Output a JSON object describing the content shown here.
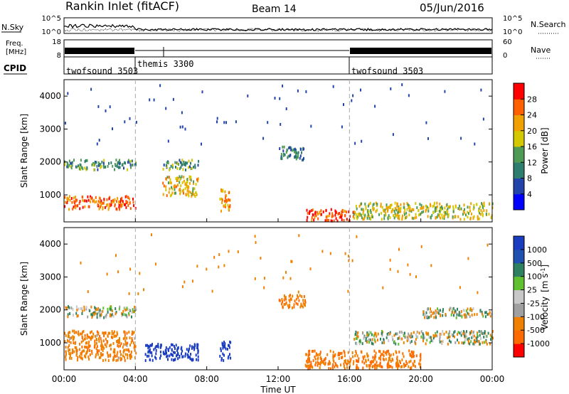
{
  "header": {
    "station": "Rankin Inlet (fitACF)",
    "beam": "Beam 14",
    "date": "05/Jun/2016"
  },
  "noise_panel": {
    "left_label": "N.Sky",
    "right_label": "N.Search",
    "left_ticks": [
      "10^5",
      "10^0"
    ],
    "right_ticks": [
      "10^5",
      "10^0"
    ]
  },
  "freq_panel": {
    "left_label_1": "Freq.",
    "left_label_2": "[MHz]",
    "left_ticks": [
      "18",
      "8"
    ],
    "right_label": "Nave",
    "right_ticks": [
      "60",
      "0"
    ]
  },
  "cpid_panel": {
    "label": "CPID",
    "modes": [
      {
        "name": "twofsound 3503",
        "start": 0.0
      },
      {
        "name": "themis 3300",
        "start": 4.0
      },
      {
        "name": "twofsound 3503",
        "start": 16.0
      }
    ]
  },
  "colors": {
    "power_scale": [
      "#0000ff",
      "#2244aa",
      "#2e7d6e",
      "#4f9a55",
      "#d4c800",
      "#f0a000",
      "#ff6000",
      "#ff0000"
    ],
    "velocity_scale": [
      "#ff0000",
      "#ff6a00",
      "#f08000",
      "#a0a0a0",
      "#c8c8c8",
      "#60c030",
      "#2e8060",
      "#2050b0",
      "#1a3cc0"
    ],
    "ground_scatter": "#b4b4b4"
  },
  "chart_data": [
    {
      "type": "heatmap",
      "panel": "power",
      "ylabel": "Slant Range [km]",
      "xlabel": "",
      "yticks": [
        "1000",
        "2000",
        "3000",
        "4000"
      ],
      "ylim": [
        180,
        4500
      ],
      "xlim": [
        0,
        24
      ],
      "colorbar": {
        "label": "Power [dB]",
        "ticks": [
          "4",
          "8",
          "12",
          "16",
          "20",
          "24",
          "28"
        ],
        "range": [
          0,
          32
        ]
      },
      "features": [
        {
          "t": [
            0.0,
            4.0
          ],
          "range": [
            600,
            1000
          ],
          "value": 26
        },
        {
          "t": [
            0.0,
            4.0
          ],
          "range": [
            1800,
            2100
          ],
          "value": 12
        },
        {
          "t": [
            5.5,
            7.5
          ],
          "range": [
            1000,
            1600
          ],
          "value": 20
        },
        {
          "t": [
            5.5,
            7.5
          ],
          "range": [
            1800,
            2100
          ],
          "value": 12
        },
        {
          "t": [
            8.7,
            9.3
          ],
          "range": [
            500,
            1200
          ],
          "value": 22
        },
        {
          "t": [
            12.0,
            13.5
          ],
          "range": [
            2100,
            2500
          ],
          "value": 10
        },
        {
          "t": [
            13.5,
            16.2
          ],
          "range": [
            250,
            600
          ],
          "value": 28
        },
        {
          "t": [
            16.2,
            24.0
          ],
          "range": [
            300,
            800
          ],
          "value": 18
        }
      ]
    },
    {
      "type": "heatmap",
      "panel": "velocity",
      "ylabel": "Slant Range [km]",
      "xlabel": "Time UT",
      "xticks": [
        "00:00",
        "04:00",
        "08:00",
        "12:00",
        "16:00",
        "20:00",
        "00:00"
      ],
      "yticks": [
        "1000",
        "2000",
        "3000",
        "4000"
      ],
      "ylim": [
        180,
        4500
      ],
      "xlim": [
        0,
        24
      ],
      "colorbar": {
        "label": "Velocity",
        "unit": "[m s",
        "unit_exp": "-1",
        "unit_end": "]",
        "ticks": [
          "1000",
          "500",
          "100",
          "25",
          "-25",
          "-100",
          "-500",
          "-1000"
        ],
        "range": [
          -1000,
          1000
        ]
      },
      "features": [
        {
          "t": [
            0.0,
            4.0
          ],
          "range": [
            500,
            1400
          ],
          "value": -200
        },
        {
          "t": [
            0.0,
            4.0
          ],
          "range": [
            1800,
            2150
          ],
          "value": 0
        },
        {
          "t": [
            4.5,
            7.5
          ],
          "range": [
            500,
            1000
          ],
          "value": 800
        },
        {
          "t": [
            8.7,
            9.3
          ],
          "range": [
            500,
            1100
          ],
          "value": 800
        },
        {
          "t": [
            12.0,
            13.5
          ],
          "range": [
            2100,
            2500
          ],
          "value": -300
        },
        {
          "t": [
            13.5,
            20.0
          ],
          "range": [
            250,
            800
          ],
          "value": -300
        },
        {
          "t": [
            16.2,
            24.0
          ],
          "range": [
            1000,
            1400
          ],
          "value": 0
        },
        {
          "t": [
            20.0,
            24.0
          ],
          "range": [
            1800,
            2100
          ],
          "value": 0
        }
      ]
    }
  ]
}
